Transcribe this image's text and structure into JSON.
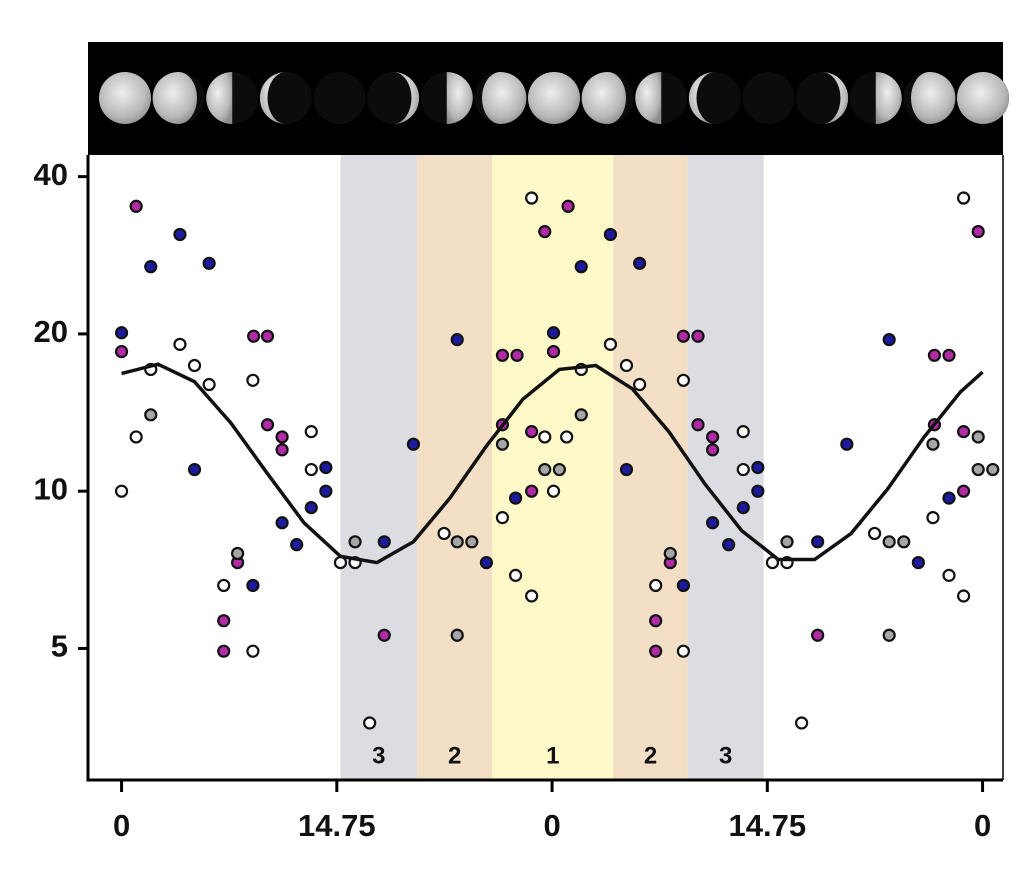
{
  "chart_data": {
    "type": "scatter",
    "ylog": true,
    "xlim": [
      -2.3,
      60.4
    ],
    "ylim": [
      2.8,
      44
    ],
    "yticks": [
      5,
      10,
      20,
      40
    ],
    "xticks": [
      0,
      14.75,
      {
        "value": 29.5,
        "label": "0"
      },
      {
        "value": 44.25,
        "label": "14.75"
      },
      {
        "value": 59,
        "label": "0"
      }
    ],
    "bands": [
      {
        "x": [
          15.0,
          20.25
        ],
        "label": "3",
        "color": "#dcdde2"
      },
      {
        "x": [
          20.25,
          25.4
        ],
        "label": "2",
        "color": "#f3dfc6"
      },
      {
        "x": [
          25.4,
          33.7
        ],
        "label": "1",
        "color": "#fdf9c8"
      },
      {
        "x": [
          33.7,
          38.8
        ],
        "label": "2",
        "color": "#f3dfc6"
      },
      {
        "x": [
          38.8,
          44.0
        ],
        "label": "3",
        "color": "#dcdde2"
      }
    ],
    "fit": {
      "color": "#111111",
      "x": [
        0,
        2.5,
        5,
        7.5,
        10,
        12.5,
        15,
        17.5,
        20,
        22.5,
        25,
        27.5,
        30,
        32.5,
        35,
        37.5,
        40,
        42.5,
        45,
        47.5,
        50,
        52.5,
        55,
        57.5,
        59
      ],
      "values": [
        16.8,
        17.5,
        16.2,
        13.5,
        10.8,
        8.7,
        7.5,
        7.3,
        8.0,
        9.7,
        12.2,
        15.0,
        17.1,
        17.4,
        15.7,
        13.0,
        10.3,
        8.4,
        7.4,
        7.4,
        8.3,
        10.1,
        12.7,
        15.5,
        16.9
      ]
    },
    "series": [
      {
        "color": "#b12aa6",
        "x": [
          0,
          1.0,
          7.0,
          7.0,
          7.95,
          9.05,
          10.0,
          10.0,
          11.0,
          11.0,
          18.0,
          26.1,
          26.1,
          27.1,
          28.1,
          28.1,
          29.0,
          29.6,
          30.6,
          36.6,
          36.6,
          37.6,
          38.5,
          39.5,
          39.5,
          40.5,
          40.5,
          47.7,
          55.7,
          55.7,
          56.7,
          57.7,
          57.7,
          58.7
        ],
        "values": [
          18.5,
          35.1,
          5.65,
          4.94,
          7.3,
          19.8,
          19.8,
          13.4,
          12.7,
          12.0,
          5.3,
          13.4,
          18.2,
          18.2,
          13.0,
          10.0,
          31.4,
          18.5,
          35.1,
          5.65,
          4.94,
          7.3,
          19.8,
          19.8,
          13.4,
          12.7,
          12.0,
          5.3,
          13.4,
          18.2,
          18.2,
          13.0,
          10.0,
          31.4
        ]
      },
      {
        "color": "#1c1a9e",
        "x": [
          0,
          2.0,
          4.0,
          5.0,
          6.0,
          9.0,
          11.0,
          12.0,
          13.0,
          14.0,
          14.0,
          18.0,
          20.0,
          23.0,
          25.0,
          27.0,
          29.6,
          31.5,
          33.5,
          34.6,
          35.5,
          38.5,
          40.5,
          41.6,
          42.6,
          43.6,
          43.6,
          47.7,
          49.7,
          52.6,
          54.6,
          56.7
        ],
        "values": [
          20.1,
          26.9,
          31.0,
          11.0,
          27.3,
          6.6,
          8.7,
          7.9,
          9.3,
          11.1,
          10.0,
          8.0,
          12.3,
          19.5,
          7.3,
          9.7,
          20.1,
          26.9,
          31.0,
          11.0,
          27.3,
          6.6,
          8.7,
          7.9,
          9.3,
          11.1,
          10.0,
          8.0,
          12.3,
          19.5,
          7.3,
          9.7
        ]
      },
      {
        "color": "#ffffff",
        "x": [
          0,
          1.0,
          2.0,
          4.0,
          5.0,
          6.0,
          7.0,
          9.0,
          9.0,
          13.0,
          13.0,
          15.0,
          16.0,
          17.0,
          22.1,
          26.1,
          27.0,
          28.1,
          28.1,
          29.0,
          29.6,
          30.5,
          31.5,
          33.5,
          34.6,
          35.5,
          36.6,
          38.5,
          38.5,
          42.6,
          42.6,
          44.6,
          45.6,
          46.6,
          51.6,
          55.6,
          56.7,
          57.7,
          57.7
        ],
        "values": [
          10.0,
          12.7,
          17.1,
          19.1,
          17.4,
          16.0,
          6.6,
          16.3,
          4.94,
          13.0,
          11.0,
          7.3,
          7.3,
          3.6,
          8.3,
          8.9,
          6.9,
          36.4,
          6.3,
          12.7,
          10.0,
          12.7,
          17.1,
          19.1,
          17.4,
          16.0,
          6.6,
          16.3,
          4.94,
          13.0,
          11.0,
          7.3,
          7.3,
          3.6,
          8.3,
          8.9,
          6.9,
          36.4,
          6.3
        ]
      },
      {
        "color": "#a6a6a6",
        "x": [
          2.0,
          7.95,
          16.0,
          23.0,
          23.0,
          24.0,
          26.1,
          29.0,
          30.0,
          31.5,
          37.6,
          45.6,
          52.6,
          52.6,
          53.6,
          55.6,
          58.7,
          58.7,
          59.7
        ],
        "values": [
          14.0,
          7.6,
          8.0,
          8.0,
          5.3,
          8.0,
          12.3,
          11.0,
          11.0,
          14.0,
          7.6,
          8.0,
          8.0,
          5.3,
          8.0,
          12.3,
          12.7,
          11.0,
          11.0
        ]
      }
    ]
  }
}
